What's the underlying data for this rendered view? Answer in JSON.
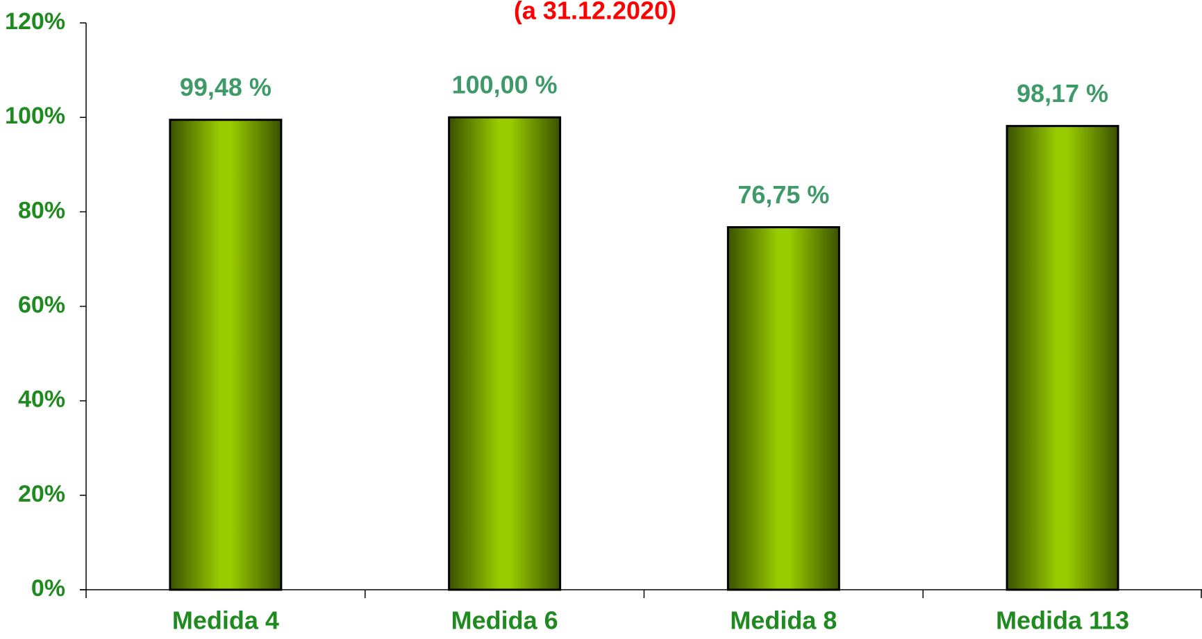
{
  "chart_data": {
    "type": "bar",
    "title": "(a 31.12.2020)",
    "categories": [
      "Medida 4",
      "Medida 6",
      "Medida 8",
      "Medida 113"
    ],
    "values": [
      99.48,
      100.0,
      76.75,
      98.17
    ],
    "value_labels": [
      "99,48 %",
      "100,00 %",
      "76,75 %",
      "98,17 %"
    ],
    "color": "#99cc00",
    "ylim": [
      0,
      120
    ],
    "yticks": [
      {
        "value": 0,
        "label": "0%"
      },
      {
        "value": 20,
        "label": "20%"
      },
      {
        "value": 40,
        "label": "40%"
      },
      {
        "value": 60,
        "label": "60%"
      },
      {
        "value": 80,
        "label": "80%"
      },
      {
        "value": 100,
        "label": "100%"
      },
      {
        "value": 120,
        "label": "120%"
      }
    ]
  }
}
